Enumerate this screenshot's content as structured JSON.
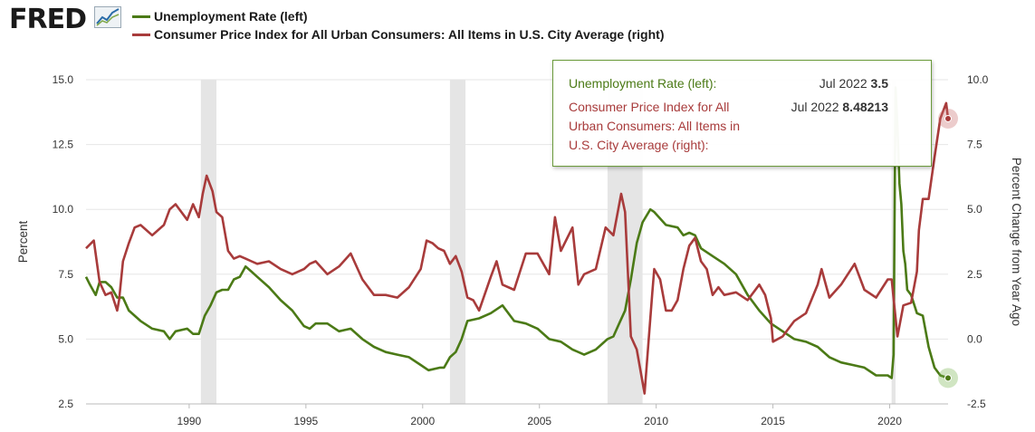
{
  "brand": "FRED",
  "chart_data": {
    "type": "line",
    "title": "",
    "xlabel": "",
    "ylabel_left": "Percent",
    "ylabel_right": "Percent Change from Year Ago",
    "x_range": [
      "1985-08",
      "2022-07"
    ],
    "ylim_left": [
      2.5,
      15.0
    ],
    "ylim_right": [
      -2.5,
      10.0
    ],
    "x_ticks": [
      "1990",
      "1995",
      "2000",
      "2005",
      "2010",
      "2015",
      "2020"
    ],
    "y_ticks_left": [
      "2.5",
      "5.0",
      "7.5",
      "10.0",
      "12.5",
      "15.0"
    ],
    "y_ticks_right": [
      "-2.5",
      "0.0",
      "2.5",
      "5.0",
      "7.5",
      "10.0"
    ],
    "grid": "horizontal",
    "legend_position": "top-left",
    "recessions": [
      [
        "1990-07",
        "1991-03"
      ],
      [
        "2001-03",
        "2001-11"
      ],
      [
        "2007-12",
        "2009-06"
      ],
      [
        "2020-02",
        "2020-04"
      ]
    ],
    "series": [
      {
        "name": "Unemployment Rate (left)",
        "axis": "left",
        "color": "#4b7a16",
        "points": [
          [
            "1985-08",
            7.4
          ],
          [
            "1985-10",
            7.1
          ],
          [
            "1986-01",
            6.7
          ],
          [
            "1986-03",
            7.2
          ],
          [
            "1986-06",
            7.2
          ],
          [
            "1986-09",
            7.0
          ],
          [
            "1986-12",
            6.6
          ],
          [
            "1987-03",
            6.6
          ],
          [
            "1987-06",
            6.1
          ],
          [
            "1987-12",
            5.7
          ],
          [
            "1988-06",
            5.4
          ],
          [
            "1988-12",
            5.3
          ],
          [
            "1989-03",
            5.0
          ],
          [
            "1989-06",
            5.3
          ],
          [
            "1989-12",
            5.4
          ],
          [
            "1990-03",
            5.2
          ],
          [
            "1990-06",
            5.2
          ],
          [
            "1990-09",
            5.9
          ],
          [
            "1990-12",
            6.3
          ],
          [
            "1991-03",
            6.8
          ],
          [
            "1991-06",
            6.9
          ],
          [
            "1991-09",
            6.9
          ],
          [
            "1991-12",
            7.3
          ],
          [
            "1992-03",
            7.4
          ],
          [
            "1992-06",
            7.8
          ],
          [
            "1992-09",
            7.6
          ],
          [
            "1992-12",
            7.4
          ],
          [
            "1993-06",
            7.0
          ],
          [
            "1993-12",
            6.5
          ],
          [
            "1994-06",
            6.1
          ],
          [
            "1994-12",
            5.5
          ],
          [
            "1995-03",
            5.4
          ],
          [
            "1995-06",
            5.6
          ],
          [
            "1995-12",
            5.6
          ],
          [
            "1996-06",
            5.3
          ],
          [
            "1996-12",
            5.4
          ],
          [
            "1997-06",
            5.0
          ],
          [
            "1997-12",
            4.7
          ],
          [
            "1998-06",
            4.5
          ],
          [
            "1998-12",
            4.4
          ],
          [
            "1999-06",
            4.3
          ],
          [
            "1999-12",
            4.0
          ],
          [
            "2000-04",
            3.8
          ],
          [
            "2000-10",
            3.9
          ],
          [
            "2000-12",
            3.9
          ],
          [
            "2001-03",
            4.3
          ],
          [
            "2001-06",
            4.5
          ],
          [
            "2001-09",
            5.0
          ],
          [
            "2001-12",
            5.7
          ],
          [
            "2002-06",
            5.8
          ],
          [
            "2002-12",
            6.0
          ],
          [
            "2003-06",
            6.3
          ],
          [
            "2003-12",
            5.7
          ],
          [
            "2004-06",
            5.6
          ],
          [
            "2004-12",
            5.4
          ],
          [
            "2005-06",
            5.0
          ],
          [
            "2005-12",
            4.9
          ],
          [
            "2006-06",
            4.6
          ],
          [
            "2006-12",
            4.4
          ],
          [
            "2007-06",
            4.6
          ],
          [
            "2007-12",
            5.0
          ],
          [
            "2008-03",
            5.1
          ],
          [
            "2008-06",
            5.6
          ],
          [
            "2008-09",
            6.1
          ],
          [
            "2008-12",
            7.3
          ],
          [
            "2009-03",
            8.7
          ],
          [
            "2009-06",
            9.5
          ],
          [
            "2009-10",
            10.0
          ],
          [
            "2009-12",
            9.9
          ],
          [
            "2010-06",
            9.4
          ],
          [
            "2010-12",
            9.3
          ],
          [
            "2011-03",
            9.0
          ],
          [
            "2011-06",
            9.1
          ],
          [
            "2011-09",
            9.0
          ],
          [
            "2011-12",
            8.5
          ],
          [
            "2012-06",
            8.2
          ],
          [
            "2012-12",
            7.9
          ],
          [
            "2013-06",
            7.5
          ],
          [
            "2013-12",
            6.7
          ],
          [
            "2014-06",
            6.1
          ],
          [
            "2014-12",
            5.6
          ],
          [
            "2015-06",
            5.3
          ],
          [
            "2015-12",
            5.0
          ],
          [
            "2016-06",
            4.9
          ],
          [
            "2016-12",
            4.7
          ],
          [
            "2017-06",
            4.3
          ],
          [
            "2017-12",
            4.1
          ],
          [
            "2018-06",
            4.0
          ],
          [
            "2018-12",
            3.9
          ],
          [
            "2019-06",
            3.6
          ],
          [
            "2019-12",
            3.6
          ],
          [
            "2020-02",
            3.5
          ],
          [
            "2020-03",
            4.4
          ],
          [
            "2020-04",
            14.7
          ],
          [
            "2020-05",
            13.2
          ],
          [
            "2020-06",
            11.0
          ],
          [
            "2020-07",
            10.2
          ],
          [
            "2020-08",
            8.4
          ],
          [
            "2020-09",
            7.9
          ],
          [
            "2020-10",
            6.9
          ],
          [
            "2020-12",
            6.7
          ],
          [
            "2021-03",
            6.0
          ],
          [
            "2021-06",
            5.9
          ],
          [
            "2021-09",
            4.7
          ],
          [
            "2021-12",
            3.9
          ],
          [
            "2022-03",
            3.6
          ],
          [
            "2022-07",
            3.5
          ]
        ]
      },
      {
        "name": "Consumer Price Index for All Urban Consumers: All Items in U.S. City Average (right)",
        "axis": "right",
        "color": "#a83b3b",
        "points": [
          [
            "1985-08",
            3.5
          ],
          [
            "1985-12",
            3.8
          ],
          [
            "1986-03",
            2.2
          ],
          [
            "1986-06",
            1.7
          ],
          [
            "1986-09",
            1.8
          ],
          [
            "1986-12",
            1.1
          ],
          [
            "1987-01",
            1.5
          ],
          [
            "1987-03",
            3.0
          ],
          [
            "1987-06",
            3.7
          ],
          [
            "1987-09",
            4.3
          ],
          [
            "1987-12",
            4.4
          ],
          [
            "1988-06",
            4.0
          ],
          [
            "1988-12",
            4.4
          ],
          [
            "1989-03",
            5.0
          ],
          [
            "1989-06",
            5.2
          ],
          [
            "1989-12",
            4.6
          ],
          [
            "1990-03",
            5.2
          ],
          [
            "1990-06",
            4.7
          ],
          [
            "1990-08",
            5.6
          ],
          [
            "1990-10",
            6.3
          ],
          [
            "1991-01",
            5.7
          ],
          [
            "1991-03",
            4.9
          ],
          [
            "1991-06",
            4.7
          ],
          [
            "1991-09",
            3.4
          ],
          [
            "1991-12",
            3.1
          ],
          [
            "1992-03",
            3.2
          ],
          [
            "1992-06",
            3.1
          ],
          [
            "1992-09",
            3.0
          ],
          [
            "1992-12",
            2.9
          ],
          [
            "1993-06",
            3.0
          ],
          [
            "1993-12",
            2.7
          ],
          [
            "1994-06",
            2.5
          ],
          [
            "1994-12",
            2.7
          ],
          [
            "1995-03",
            2.9
          ],
          [
            "1995-06",
            3.0
          ],
          [
            "1995-12",
            2.5
          ],
          [
            "1996-06",
            2.8
          ],
          [
            "1996-12",
            3.3
          ],
          [
            "1997-06",
            2.3
          ],
          [
            "1997-12",
            1.7
          ],
          [
            "1998-06",
            1.7
          ],
          [
            "1998-12",
            1.6
          ],
          [
            "1999-06",
            2.0
          ],
          [
            "1999-12",
            2.7
          ],
          [
            "2000-03",
            3.8
          ],
          [
            "2000-06",
            3.7
          ],
          [
            "2000-09",
            3.5
          ],
          [
            "2000-12",
            3.4
          ],
          [
            "2001-03",
            2.9
          ],
          [
            "2001-06",
            3.2
          ],
          [
            "2001-09",
            2.6
          ],
          [
            "2001-12",
            1.6
          ],
          [
            "2002-03",
            1.5
          ],
          [
            "2002-06",
            1.1
          ],
          [
            "2002-12",
            2.4
          ],
          [
            "2003-03",
            3.0
          ],
          [
            "2003-06",
            2.1
          ],
          [
            "2003-12",
            1.9
          ],
          [
            "2004-06",
            3.3
          ],
          [
            "2004-12",
            3.3
          ],
          [
            "2005-06",
            2.5
          ],
          [
            "2005-09",
            4.7
          ],
          [
            "2005-12",
            3.4
          ],
          [
            "2006-06",
            4.3
          ],
          [
            "2006-09",
            2.1
          ],
          [
            "2006-12",
            2.5
          ],
          [
            "2007-06",
            2.7
          ],
          [
            "2007-11",
            4.3
          ],
          [
            "2008-03",
            4.0
          ],
          [
            "2008-07",
            5.6
          ],
          [
            "2008-09",
            4.9
          ],
          [
            "2008-12",
            0.1
          ],
          [
            "2009-03",
            -0.4
          ],
          [
            "2009-07",
            -2.1
          ],
          [
            "2009-11",
            1.8
          ],
          [
            "2009-12",
            2.7
          ],
          [
            "2010-03",
            2.3
          ],
          [
            "2010-06",
            1.1
          ],
          [
            "2010-09",
            1.1
          ],
          [
            "2010-12",
            1.5
          ],
          [
            "2011-03",
            2.7
          ],
          [
            "2011-06",
            3.6
          ],
          [
            "2011-09",
            3.9
          ],
          [
            "2011-12",
            3.0
          ],
          [
            "2012-03",
            2.7
          ],
          [
            "2012-06",
            1.7
          ],
          [
            "2012-09",
            2.0
          ],
          [
            "2012-12",
            1.7
          ],
          [
            "2013-06",
            1.8
          ],
          [
            "2013-12",
            1.5
          ],
          [
            "2014-06",
            2.1
          ],
          [
            "2014-09",
            1.7
          ],
          [
            "2014-12",
            0.8
          ],
          [
            "2015-01",
            -0.1
          ],
          [
            "2015-06",
            0.1
          ],
          [
            "2015-12",
            0.7
          ],
          [
            "2016-06",
            1.0
          ],
          [
            "2016-12",
            2.1
          ],
          [
            "2017-02",
            2.7
          ],
          [
            "2017-06",
            1.6
          ],
          [
            "2017-12",
            2.1
          ],
          [
            "2018-07",
            2.9
          ],
          [
            "2018-12",
            1.9
          ],
          [
            "2019-06",
            1.6
          ],
          [
            "2019-12",
            2.3
          ],
          [
            "2020-02",
            2.3
          ],
          [
            "2020-05",
            0.1
          ],
          [
            "2020-08",
            1.3
          ],
          [
            "2020-12",
            1.4
          ],
          [
            "2021-03",
            2.6
          ],
          [
            "2021-04",
            4.2
          ],
          [
            "2021-06",
            5.4
          ],
          [
            "2021-09",
            5.4
          ],
          [
            "2021-12",
            7.0
          ],
          [
            "2022-03",
            8.5
          ],
          [
            "2022-06",
            9.1
          ],
          [
            "2022-07",
            8.5
          ]
        ]
      }
    ],
    "highlight": {
      "date": "Jul 2022",
      "left_value": "3.5",
      "right_value": "8.48213"
    }
  },
  "legend": {
    "items": [
      {
        "label": "Unemployment Rate (left)",
        "color": "#4b7a16"
      },
      {
        "label": "Consumer Price Index for All Urban Consumers: All Items in U.S. City Average (right)",
        "color": "#a83b3b"
      }
    ]
  },
  "tooltip": {
    "row1_label": "Unemployment Rate (left):",
    "row1_date": "Jul 2022",
    "row1_value": "3.5",
    "row2_label_lines": [
      "Consumer Price Index for All",
      "Urban Consumers: All Items in",
      "U.S. City Average (right):"
    ],
    "row2_date": "Jul 2022",
    "row2_value": "8.48213"
  }
}
